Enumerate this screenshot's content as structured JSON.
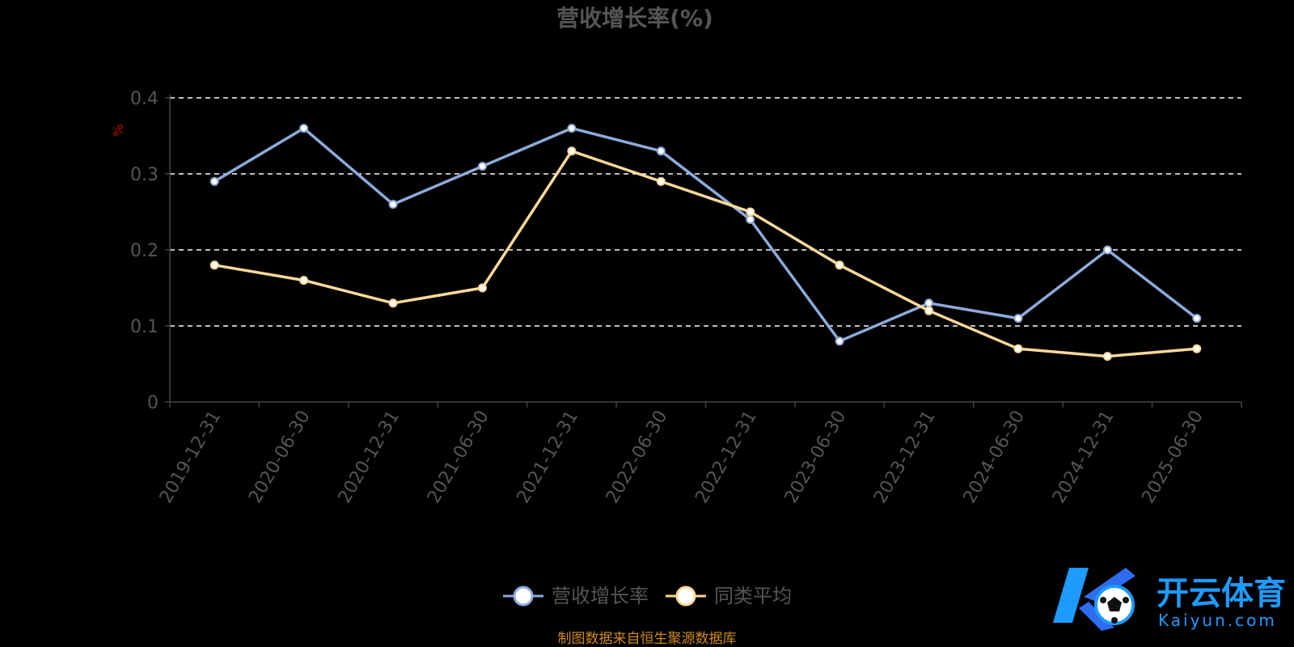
{
  "chart_data": {
    "type": "line",
    "title": "营收增长率(%)",
    "ylabel": "%",
    "ylim": [
      0,
      0.4
    ],
    "yticks": [
      0,
      0.1,
      0.2,
      0.3,
      0.4
    ],
    "ytick_labels": [
      "0",
      "0.1",
      "0.2",
      "0.3",
      "0.4"
    ],
    "grid": true,
    "legend_position": "bottom",
    "categories": [
      "2019-12-31",
      "2020-06-30",
      "2020-12-31",
      "2021-06-30",
      "2021-12-31",
      "2022-06-30",
      "2022-12-31",
      "2023-06-30",
      "2023-12-31",
      "2024-06-30",
      "2024-12-31",
      "2025-06-30"
    ],
    "series": [
      {
        "name": "营收增长率",
        "color": "#8eaadb",
        "values": [
          0.29,
          0.36,
          0.26,
          0.31,
          0.36,
          0.33,
          0.24,
          0.08,
          0.13,
          0.11,
          0.2,
          0.11
        ]
      },
      {
        "name": "同类平均",
        "color": "#fdd89a",
        "values": [
          0.18,
          0.16,
          0.13,
          0.15,
          0.33,
          0.29,
          0.25,
          0.18,
          0.12,
          0.07,
          0.06,
          0.07
        ]
      }
    ]
  },
  "source_note": "制图数据来自恒生聚源数据库",
  "watermark": {
    "brand_cn": "开云体育",
    "brand_en": "Kaiyun.com",
    "colors": {
      "primary": "#1e9bff",
      "secondary": "#2e6df0"
    }
  }
}
